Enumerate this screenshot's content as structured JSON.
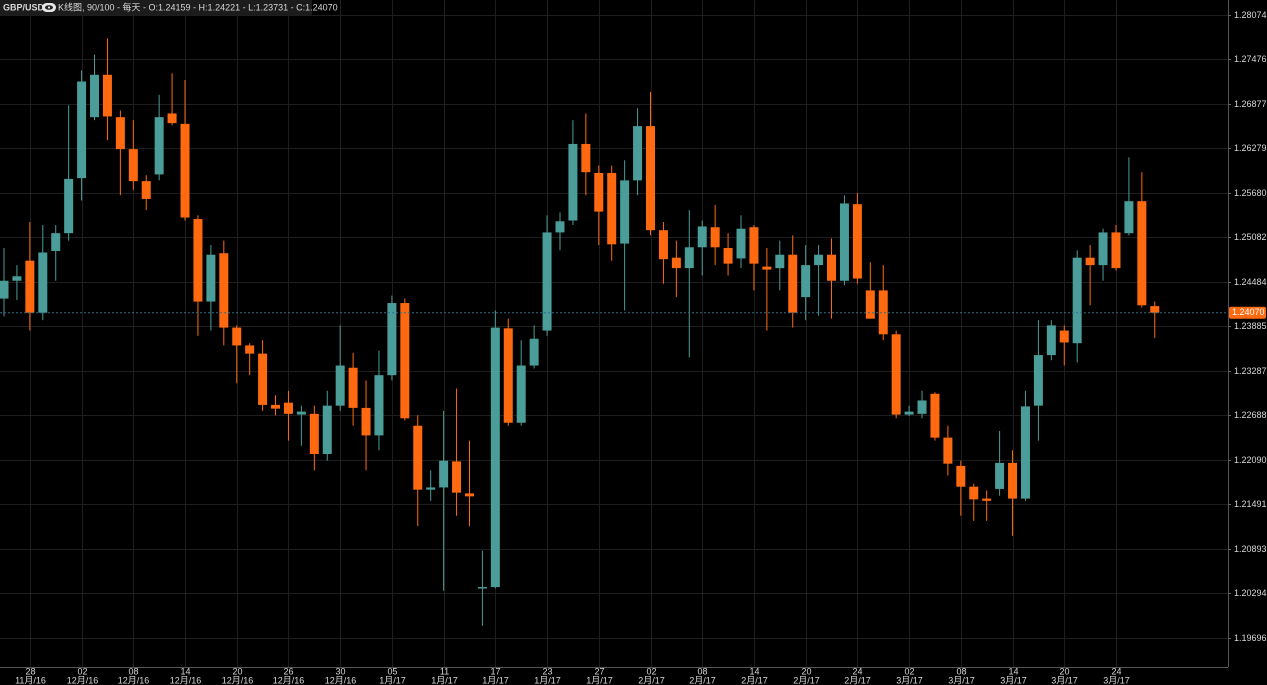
{
  "chart_data": {
    "type": "candlestick",
    "symbol": "GBP/USD",
    "info": "K线图, 90/100 - 每天 - O:1.24159 - H:1.24221 - L:1.23731 - C:1.24070",
    "categories": [
      null,
      null,
      "28",
      null,
      null,
      null,
      "02",
      null,
      null,
      null,
      "08",
      null,
      null,
      null,
      "14",
      null,
      null,
      null,
      "20",
      null,
      null,
      null,
      "26",
      null,
      null,
      null,
      "30",
      null,
      null,
      null,
      "05",
      null,
      null,
      null,
      "11",
      null,
      null,
      null,
      "17",
      null,
      null,
      null,
      "23",
      null,
      null,
      null,
      "27",
      null,
      null,
      null,
      "02",
      null,
      null,
      null,
      "08",
      null,
      null,
      null,
      "14",
      null,
      null,
      null,
      "20",
      null,
      null,
      null,
      "24",
      null,
      null,
      null,
      "02",
      null,
      null,
      null,
      "08",
      null,
      null,
      null,
      "14",
      null,
      null,
      null,
      "20",
      null,
      null,
      null,
      "24",
      null,
      null,
      null
    ],
    "category_months": [
      null,
      null,
      "11月/16",
      null,
      null,
      null,
      "12月/16",
      null,
      null,
      null,
      "12月/16",
      null,
      null,
      null,
      "12月/16",
      null,
      null,
      null,
      "12月/16",
      null,
      null,
      null,
      "12月/16",
      null,
      null,
      null,
      "12月/16",
      null,
      null,
      null,
      "1月/17",
      null,
      null,
      null,
      "1月/17",
      null,
      null,
      null,
      "1月/17",
      null,
      null,
      null,
      "1月/17",
      null,
      null,
      null,
      "1月/17",
      null,
      null,
      null,
      "2月/17",
      null,
      null,
      null,
      "2月/17",
      null,
      null,
      null,
      "2月/17",
      null,
      null,
      null,
      "2月/17",
      null,
      null,
      null,
      "2月/17",
      null,
      null,
      null,
      "3月/17",
      null,
      null,
      null,
      "3月/17",
      null,
      null,
      null,
      "3月/17",
      null,
      null,
      null,
      "3月/17",
      null,
      null,
      null,
      "3月/17",
      null,
      null,
      null
    ],
    "open": [
      1.2426,
      1.245,
      1.2477,
      1.2407,
      1.249,
      1.2514,
      1.2588,
      1.267,
      1.2727,
      1.267,
      1.2627,
      1.2584,
      1.2593,
      1.2675,
      1.2661,
      1.2533,
      1.2422,
      1.2487,
      1.2387,
      1.2363,
      1.2352,
      1.2283,
      1.2286,
      1.227,
      1.2271,
      1.2217,
      1.2282,
      1.2333,
      1.2279,
      1.2242,
      1.2323,
      1.242,
      1.2255,
      1.2169,
      1.2172,
      1.2207,
      1.2164,
      1.2036,
      1.2038,
      1.2386,
      1.2259,
      1.2336,
      1.2383,
      1.2515,
      1.2531,
      1.2634,
      1.2595,
      1.2595,
      1.25,
      1.2585,
      1.2658,
      1.2518,
      1.2481,
      1.2467,
      1.2495,
      1.2522,
      1.2494,
      1.248,
      1.2522,
      1.2469,
      1.2467,
      1.2485,
      1.2428,
      1.2471,
      1.2485,
      1.245,
      1.2553,
      1.2437,
      1.2437,
      1.2378,
      1.227,
      1.2271,
      1.2298,
      1.2239,
      1.2201,
      1.2173,
      1.2157,
      1.217,
      1.2205,
      1.2157,
      1.2282,
      1.235,
      1.2383,
      1.2366,
      1.2481,
      1.2471,
      1.2515,
      1.2514,
      1.2557,
      1.24159
    ],
    "high": [
      1.2494,
      1.2471,
      1.2529,
      1.2525,
      1.2525,
      1.2686,
      1.2733,
      1.2754,
      1.2776,
      1.2679,
      1.2666,
      1.2592,
      1.27,
      1.2729,
      1.272,
      1.2538,
      1.2498,
      1.2504,
      1.239,
      1.2366,
      1.237,
      1.2296,
      1.2302,
      1.2282,
      1.2282,
      1.2302,
      1.239,
      1.2353,
      1.2316,
      1.2356,
      1.243,
      1.2426,
      1.2269,
      1.2195,
      1.2275,
      1.2305,
      1.2235,
      1.2087,
      1.241,
      1.2399,
      1.237,
      1.239,
      1.2538,
      1.2542,
      1.2666,
      1.2675,
      1.2605,
      1.2605,
      1.2612,
      1.2682,
      1.2704,
      1.2529,
      1.2504,
      1.2545,
      1.2531,
      1.2552,
      1.2514,
      1.2538,
      1.2525,
      1.2494,
      1.2504,
      1.2511,
      1.2498,
      1.2498,
      1.2507,
      1.2565,
      1.2568,
      1.2475,
      1.2471,
      1.2383,
      1.2282,
      1.2302,
      1.23,
      1.2255,
      1.2208,
      1.2177,
      1.2168,
      1.2248,
      1.2222,
      1.2302,
      1.2397,
      1.2397,
      1.239,
      1.2491,
      1.2498,
      1.252,
      1.2525,
      1.2616,
      1.2596,
      1.24221
    ],
    "low": [
      1.2402,
      1.2424,
      1.2383,
      1.2397,
      1.245,
      1.2504,
      1.2558,
      1.2666,
      1.2639,
      1.2565,
      1.2572,
      1.2545,
      1.2585,
      1.2659,
      1.2531,
      1.2376,
      1.2383,
      1.2363,
      1.2312,
      1.2323,
      1.2275,
      1.2269,
      1.2235,
      1.2228,
      1.2195,
      1.2208,
      1.2275,
      1.2255,
      1.2195,
      1.2222,
      1.2316,
      1.2262,
      1.212,
      1.2154,
      1.2033,
      1.2134,
      1.212,
      1.1986,
      1.2036,
      1.2255,
      1.2255,
      1.2332,
      1.2376,
      1.2491,
      1.2525,
      1.2565,
      1.2498,
      1.2477,
      1.241,
      1.2565,
      1.2511,
      1.2446,
      1.2428,
      1.2347,
      1.2457,
      1.2471,
      1.2457,
      1.2467,
      1.2437,
      1.2383,
      1.2437,
      1.2387,
      1.2397,
      1.2403,
      1.2399,
      1.2444,
      1.2446,
      1.2399,
      1.237,
      1.2265,
      1.2268,
      1.2265,
      1.2235,
      1.2188,
      1.2134,
      1.2127,
      1.2127,
      1.2161,
      1.2107,
      1.2154,
      1.2235,
      1.2343,
      1.2336,
      1.234,
      1.2417,
      1.245,
      1.2464,
      1.2511,
      1.2414,
      1.23731
    ],
    "close": [
      1.245,
      1.2456,
      1.2407,
      1.2488,
      1.2514,
      1.2587,
      1.2718,
      1.2727,
      1.2671,
      1.2627,
      1.2584,
      1.256,
      1.267,
      1.2662,
      1.2535,
      1.2422,
      1.2485,
      1.2387,
      1.2363,
      1.2352,
      1.2283,
      1.2278,
      1.2271,
      1.2274,
      1.2217,
      1.2282,
      1.2336,
      1.2279,
      1.2242,
      1.2323,
      1.242,
      1.2265,
      1.2169,
      1.2172,
      1.2208,
      1.2165,
      1.216,
      1.2038,
      1.2387,
      1.2259,
      1.2336,
      1.2372,
      1.2515,
      1.253,
      1.2634,
      1.2596,
      1.2543,
      1.2499,
      1.2585,
      1.2658,
      1.2518,
      1.2479,
      1.2467,
      1.2495,
      1.2523,
      1.2495,
      1.2473,
      1.252,
      1.2473,
      1.2465,
      1.2485,
      1.2407,
      1.2471,
      1.2485,
      1.245,
      1.2554,
      1.2453,
      1.2399,
      1.2378,
      1.227,
      1.2274,
      1.2289,
      1.2239,
      1.2204,
      1.2173,
      1.2156,
      1.2154,
      1.2205,
      1.2157,
      1.2281,
      1.235,
      1.239,
      1.2367,
      1.2481,
      1.2471,
      1.2515,
      1.2467,
      1.2557,
      1.2417,
      1.2407
    ],
    "up_color": "#4a9d98",
    "down_color": "#ff6a10",
    "last_price": {
      "value": 1.2407,
      "label": "1.24070"
    },
    "ylim": [
      1.19305,
      1.28276
    ],
    "yticks": [
      1.28074,
      1.27476,
      1.26877,
      1.26279,
      {
        "value": 1.2568,
        "label": "1.25680"
      },
      1.25082,
      1.24484,
      1.23885,
      1.23287,
      1.22688,
      {
        "value": 1.2209,
        "label": "1.22090"
      },
      1.21491,
      1.20893,
      1.20294,
      1.19696
    ],
    "grid": true
  }
}
